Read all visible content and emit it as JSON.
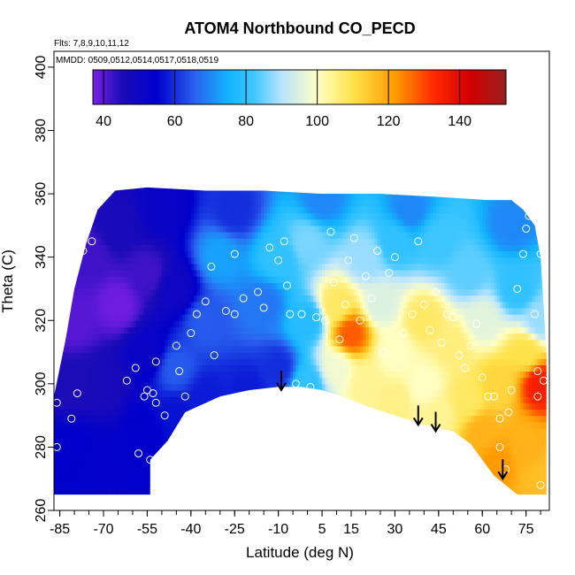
{
  "chart_data": {
    "type": "heatmap",
    "title": "ATOM4 Northbound CO_PECD",
    "annotation_flights": "Flts: 7,8,9,10,11,12",
    "annotation_dates": "MMDD: 0509,0512,0514,0517,0518,0519",
    "xlabel": "Latitude (deg N)",
    "ylabel": "Theta (C)",
    "xlim": [
      -87,
      83
    ],
    "ylim": [
      260,
      405
    ],
    "x_ticks": [
      -85,
      -70,
      -55,
      -40,
      -25,
      -10,
      5,
      15,
      30,
      45,
      60,
      75
    ],
    "x_tick_labels": [
      "-85",
      "-70",
      "-55",
      "-40",
      "-25",
      "-10",
      "5",
      "15",
      "30",
      "45",
      "60",
      "75"
    ],
    "y_ticks": [
      260,
      280,
      300,
      320,
      340,
      360,
      380,
      400
    ],
    "y_tick_labels": [
      "260",
      "280",
      "300",
      "320",
      "340",
      "360",
      "380",
      "400"
    ],
    "colorbar": {
      "min": 37,
      "max": 153,
      "ticks": [
        40,
        60,
        80,
        100,
        120,
        140
      ],
      "tick_labels": [
        "40",
        "60",
        "80",
        "100",
        "120",
        "140"
      ],
      "stops": [
        {
          "v": 37,
          "color": "#7a1fe6"
        },
        {
          "v": 45,
          "color": "#1c0cb8"
        },
        {
          "v": 55,
          "color": "#0000cc"
        },
        {
          "v": 66,
          "color": "#2a64f0"
        },
        {
          "v": 75,
          "color": "#12b4ff"
        },
        {
          "v": 82,
          "color": "#3dc6ff"
        },
        {
          "v": 90,
          "color": "#b8e4ff"
        },
        {
          "v": 100,
          "color": "#ffffc4"
        },
        {
          "v": 110,
          "color": "#ffe24a"
        },
        {
          "v": 122,
          "color": "#ff9a00"
        },
        {
          "v": 133,
          "color": "#ff2600"
        },
        {
          "v": 143,
          "color": "#d10000"
        },
        {
          "v": 153,
          "color": "#992020"
        }
      ]
    },
    "data_region": {
      "lower_boundary": [
        [
          -87,
          265
        ],
        [
          -54,
          265
        ],
        [
          -54,
          276
        ],
        [
          -48,
          282
        ],
        [
          -42,
          291
        ],
        [
          -30,
          296
        ],
        [
          -20,
          298
        ],
        [
          -10,
          299
        ],
        [
          -2,
          299
        ],
        [
          5,
          298
        ],
        [
          12,
          296
        ],
        [
          20,
          293
        ],
        [
          30,
          290
        ],
        [
          40,
          287
        ],
        [
          50,
          285
        ],
        [
          56,
          281
        ],
        [
          60,
          276
        ],
        [
          64,
          271
        ],
        [
          68,
          268
        ],
        [
          72,
          265
        ],
        [
          80,
          265
        ]
      ],
      "upper_boundary": [
        [
          -87,
          296
        ],
        [
          -83,
          314
        ],
        [
          -80,
          330
        ],
        [
          -76,
          344
        ],
        [
          -72,
          355
        ],
        [
          -66,
          361
        ],
        [
          -55,
          362
        ],
        [
          -35,
          361
        ],
        [
          -15,
          361
        ],
        [
          5,
          360
        ],
        [
          25,
          360
        ],
        [
          45,
          359
        ],
        [
          62,
          358
        ],
        [
          70,
          358
        ],
        [
          74,
          355
        ],
        [
          78,
          350
        ],
        [
          80,
          340
        ],
        [
          81,
          325
        ],
        [
          82,
          310
        ],
        [
          82,
          265
        ]
      ]
    },
    "field_nodes": [
      {
        "lat": -80,
        "theta": 280,
        "co": 55
      },
      {
        "lat": -80,
        "theta": 300,
        "co": 45
      },
      {
        "lat": -80,
        "theta": 320,
        "co": 40
      },
      {
        "lat": -75,
        "theta": 340,
        "co": 42
      },
      {
        "lat": -70,
        "theta": 275,
        "co": 54
      },
      {
        "lat": -70,
        "theta": 300,
        "co": 46
      },
      {
        "lat": -65,
        "theta": 325,
        "co": 38
      },
      {
        "lat": -65,
        "theta": 350,
        "co": 46
      },
      {
        "lat": -55,
        "theta": 285,
        "co": 55
      },
      {
        "lat": -55,
        "theta": 310,
        "co": 52
      },
      {
        "lat": -55,
        "theta": 335,
        "co": 42
      },
      {
        "lat": -50,
        "theta": 355,
        "co": 52
      },
      {
        "lat": -45,
        "theta": 290,
        "co": 57
      },
      {
        "lat": -45,
        "theta": 305,
        "co": 65
      },
      {
        "lat": -45,
        "theta": 330,
        "co": 50
      },
      {
        "lat": -35,
        "theta": 296,
        "co": 58
      },
      {
        "lat": -35,
        "theta": 320,
        "co": 65
      },
      {
        "lat": -30,
        "theta": 340,
        "co": 73
      },
      {
        "lat": -25,
        "theta": 355,
        "co": 60
      },
      {
        "lat": -20,
        "theta": 298,
        "co": 58
      },
      {
        "lat": -15,
        "theta": 325,
        "co": 68
      },
      {
        "lat": -10,
        "theta": 340,
        "co": 80
      },
      {
        "lat": -10,
        "theta": 305,
        "co": 60
      },
      {
        "lat": 0,
        "theta": 300,
        "co": 80
      },
      {
        "lat": 0,
        "theta": 320,
        "co": 78
      },
      {
        "lat": 0,
        "theta": 345,
        "co": 86
      },
      {
        "lat": 5,
        "theta": 358,
        "co": 70
      },
      {
        "lat": 10,
        "theta": 305,
        "co": 98
      },
      {
        "lat": 10,
        "theta": 325,
        "co": 108
      },
      {
        "lat": 15,
        "theta": 316,
        "co": 128
      },
      {
        "lat": 20,
        "theta": 300,
        "co": 104
      },
      {
        "lat": 20,
        "theta": 340,
        "co": 88
      },
      {
        "lat": 25,
        "theta": 325,
        "co": 95
      },
      {
        "lat": 30,
        "theta": 295,
        "co": 105
      },
      {
        "lat": 30,
        "theta": 310,
        "co": 100
      },
      {
        "lat": 30,
        "theta": 345,
        "co": 80
      },
      {
        "lat": 35,
        "theta": 355,
        "co": 70
      },
      {
        "lat": 40,
        "theta": 320,
        "co": 108
      },
      {
        "lat": 40,
        "theta": 300,
        "co": 100
      },
      {
        "lat": 45,
        "theta": 290,
        "co": 104
      },
      {
        "lat": 45,
        "theta": 345,
        "co": 82
      },
      {
        "lat": 50,
        "theta": 312,
        "co": 106
      },
      {
        "lat": 55,
        "theta": 295,
        "co": 108
      },
      {
        "lat": 55,
        "theta": 335,
        "co": 84
      },
      {
        "lat": 60,
        "theta": 285,
        "co": 118
      },
      {
        "lat": 60,
        "theta": 320,
        "co": 96
      },
      {
        "lat": 65,
        "theta": 275,
        "co": 122
      },
      {
        "lat": 65,
        "theta": 300,
        "co": 112
      },
      {
        "lat": 70,
        "theta": 350,
        "co": 70
      },
      {
        "lat": 72,
        "theta": 330,
        "co": 80
      },
      {
        "lat": 75,
        "theta": 280,
        "co": 118
      },
      {
        "lat": 75,
        "theta": 310,
        "co": 110
      },
      {
        "lat": 80,
        "theta": 300,
        "co": 135
      },
      {
        "lat": 80,
        "theta": 270,
        "co": 116
      },
      {
        "lat": 80,
        "theta": 320,
        "co": 88
      }
    ],
    "sample_points": [
      [
        -86,
        294
      ],
      [
        -86,
        280
      ],
      [
        -84,
        329
      ],
      [
        -83,
        332
      ],
      [
        -81,
        289
      ],
      [
        -79,
        297
      ],
      [
        -77,
        342
      ],
      [
        -74,
        345
      ],
      [
        -70,
        361
      ],
      [
        -62,
        301
      ],
      [
        -59,
        305
      ],
      [
        -58,
        278
      ],
      [
        -56,
        296
      ],
      [
        -55,
        298
      ],
      [
        -54,
        276
      ],
      [
        -53,
        297
      ],
      [
        -52,
        307
      ],
      [
        -52,
        294
      ],
      [
        -49,
        290
      ],
      [
        -48,
        280
      ],
      [
        -45,
        312
      ],
      [
        -44,
        304
      ],
      [
        -42,
        296
      ],
      [
        -41,
        289
      ],
      [
        -40,
        316
      ],
      [
        -38,
        322
      ],
      [
        -35,
        326
      ],
      [
        -33,
        337
      ],
      [
        -32,
        309
      ],
      [
        -30,
        292
      ],
      [
        -28,
        323
      ],
      [
        -25,
        341
      ],
      [
        -25,
        322
      ],
      [
        -22,
        327
      ],
      [
        -19,
        296
      ],
      [
        -17,
        329
      ],
      [
        -15,
        324
      ],
      [
        -13,
        343
      ],
      [
        -10,
        339
      ],
      [
        -8,
        345
      ],
      [
        -7,
        331
      ],
      [
        -6,
        322
      ],
      [
        -4,
        300
      ],
      [
        -2,
        322
      ],
      [
        1,
        299
      ],
      [
        3,
        321
      ],
      [
        6,
        320
      ],
      [
        8,
        348
      ],
      [
        9,
        332
      ],
      [
        11,
        314
      ],
      [
        13,
        325
      ],
      [
        14,
        339
      ],
      [
        16,
        346
      ],
      [
        18,
        320
      ],
      [
        20,
        334
      ],
      [
        22,
        327
      ],
      [
        24,
        342
      ],
      [
        26,
        310
      ],
      [
        28,
        335
      ],
      [
        30,
        340
      ],
      [
        33,
        316
      ],
      [
        36,
        322
      ],
      [
        38,
        345
      ],
      [
        40,
        325
      ],
      [
        42,
        317
      ],
      [
        44,
        329
      ],
      [
        46,
        313
      ],
      [
        48,
        322
      ],
      [
        50,
        321
      ],
      [
        52,
        309
      ],
      [
        54,
        305
      ],
      [
        56,
        312
      ],
      [
        58,
        319
      ],
      [
        60,
        302
      ],
      [
        62,
        296
      ],
      [
        64,
        296
      ],
      [
        66,
        289
      ],
      [
        66,
        280
      ],
      [
        68,
        273
      ],
      [
        69,
        291
      ],
      [
        70,
        298
      ],
      [
        72,
        330
      ],
      [
        74,
        341
      ],
      [
        75,
        349
      ],
      [
        76,
        353
      ],
      [
        77,
        357
      ],
      [
        78,
        322
      ],
      [
        79,
        296
      ],
      [
        79,
        304
      ],
      [
        80,
        341
      ],
      [
        80,
        268
      ],
      [
        81,
        301
      ]
    ],
    "arrows": [
      {
        "lat": -9,
        "theta": 298
      },
      {
        "lat": 38,
        "theta": 287
      },
      {
        "lat": 44,
        "theta": 285
      },
      {
        "lat": 67,
        "theta": 270
      }
    ]
  }
}
